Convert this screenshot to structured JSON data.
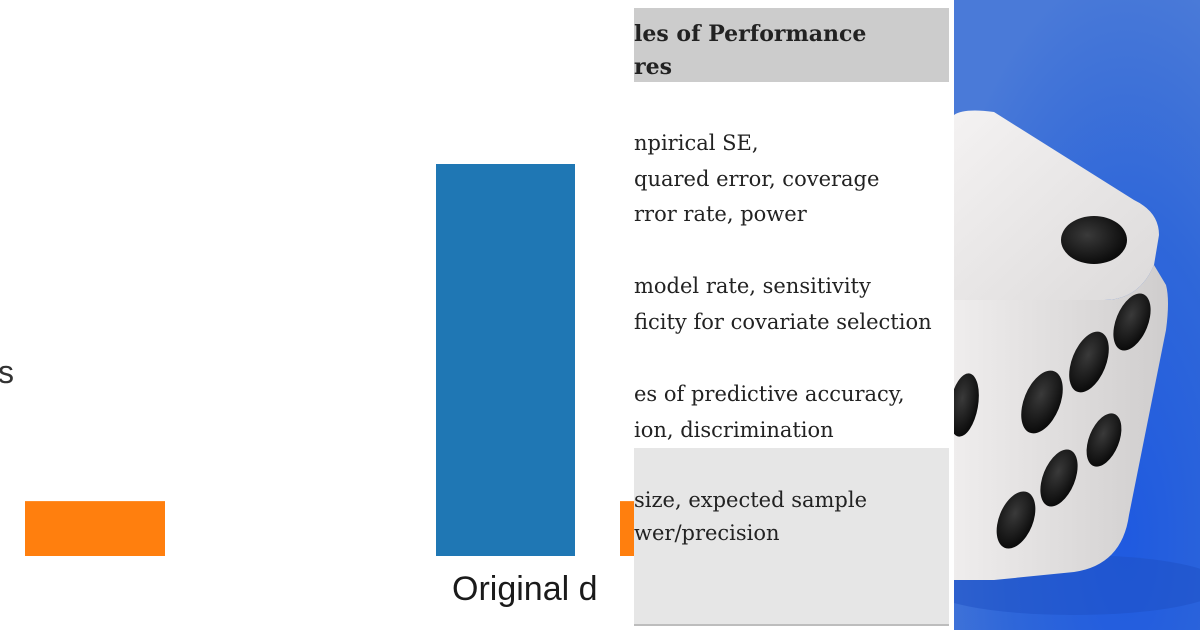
{
  "chart_data": {
    "type": "bar",
    "category_label": "Original d",
    "side_text": "s",
    "series_colors": [
      "#1f77b4",
      "#ff7f0e"
    ],
    "values_relative": {
      "blue": 1.0,
      "orange_left": 0.14,
      "orange_right_partial": 0.14
    }
  },
  "table": {
    "header_lines": [
      "les of Performance",
      "res"
    ],
    "rows": [
      {
        "lines": [
          "npirical SE,",
          "quared error, coverage",
          "rror rate, power"
        ],
        "shaded": false
      },
      {
        "lines": [
          " model rate, sensitivity",
          "ficity for covariate selection"
        ],
        "shaded": false
      },
      {
        "lines": [
          "es of predictive accuracy,",
          "ion, discrimination"
        ],
        "shaded": false
      },
      {
        "lines": [
          "size, expected sample",
          "wer/precision"
        ],
        "shaded": true
      }
    ],
    "colors": {
      "header_bg": "#cccccc",
      "shaded_row_bg": "#e6e6e6",
      "text": "#222222"
    }
  },
  "photo": {
    "subject": "white-die-on-blue-background",
    "colors": {
      "background": "#2b5fd6",
      "die": "#f3f1f1",
      "pip": "#141414"
    }
  }
}
